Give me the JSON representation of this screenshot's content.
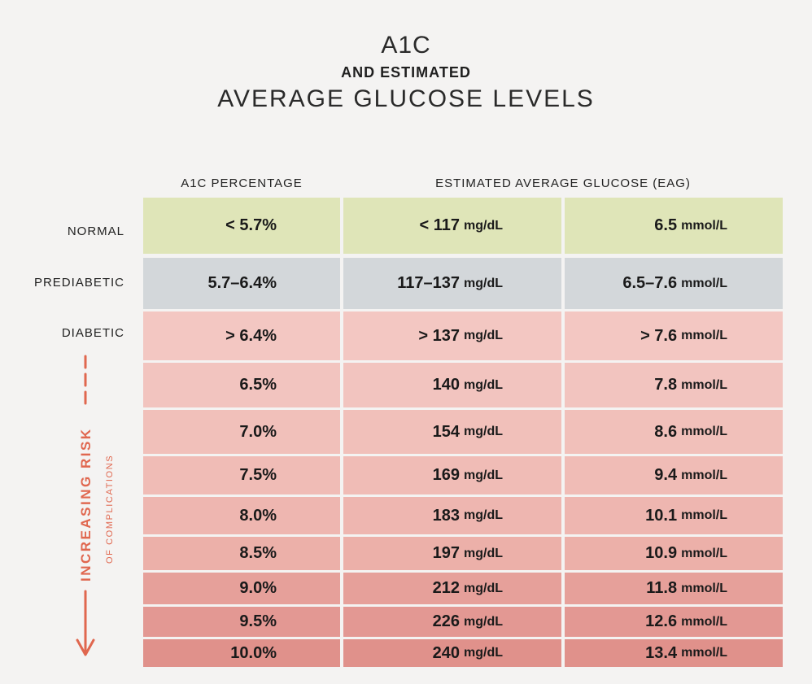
{
  "title": {
    "line1": "A1C",
    "line2": "AND ESTIMATED",
    "line3": "AVERAGE GLUCOSE LEVELS"
  },
  "headers": {
    "a1c": "A1C PERCENTAGE",
    "eag": "ESTIMATED AVERAGE GLUCOSE (EAG)"
  },
  "categories": {
    "normal": "NORMAL",
    "prediabetic": "PREDIABETIC",
    "diabetic": "DIABETIC"
  },
  "risk": {
    "main": "INCREASING RISK",
    "sub": "OF COMPLICATIONS"
  },
  "units": {
    "mgdl": "mg/dL",
    "mmol": "mmol/L"
  },
  "rows": [
    {
      "a1c": "< 5.7%",
      "mg": "< 117",
      "mmol": "6.5",
      "color": "#dfe5b8"
    },
    {
      "a1c": "5.7–6.4%",
      "mg": "117–137",
      "mmol": "6.5–7.6",
      "color": "#d3d7da"
    },
    {
      "a1c": "> 6.4%",
      "mg": "> 137",
      "mmol": "> 7.6",
      "color": "#f3c7c2"
    },
    {
      "a1c": "6.5%",
      "mg": "140",
      "mmol": "7.8",
      "color": "#f2c4bf"
    },
    {
      "a1c": "7.0%",
      "mg": "154",
      "mmol": "8.6",
      "color": "#f1c0ba"
    },
    {
      "a1c": "7.5%",
      "mg": "169",
      "mmol": "9.4",
      "color": "#f0bcb6"
    },
    {
      "a1c": "8.0%",
      "mg": "183",
      "mmol": "10.1",
      "color": "#eeb6b0"
    },
    {
      "a1c": "8.5%",
      "mg": "197",
      "mmol": "10.9",
      "color": "#ecb0a9"
    },
    {
      "a1c": "9.0%",
      "mg": "212",
      "mmol": "11.8",
      "color": "#e6a09a"
    },
    {
      "a1c": "9.5%",
      "mg": "226",
      "mmol": "12.6",
      "color": "#e39893"
    },
    {
      "a1c": "10.0%",
      "mg": "240",
      "mmol": "13.4",
      "color": "#e0918b"
    }
  ],
  "colors": {
    "accent": "#e0674f",
    "background": "#f4f3f2"
  }
}
